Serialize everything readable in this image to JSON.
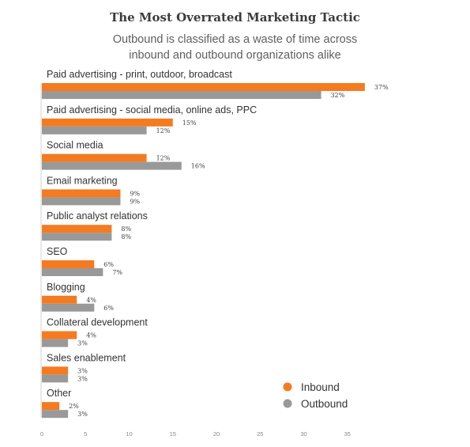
{
  "chart_data": {
    "type": "bar",
    "orientation": "horizontal",
    "title": "The Most Overrated Marketing Tactic",
    "subtitle": "Outbound is classified as a waste of time across inbound and outbound organizations alike",
    "categories": [
      "Paid advertising - print, outdoor, broadcast",
      "Paid advertising - social media, online ads, PPC",
      "Social media",
      "Email marketing",
      "Public analyst relations",
      "SEO",
      "Blogging",
      "Collateral development",
      "Sales enablement",
      "Other"
    ],
    "series": [
      {
        "name": "Inbound",
        "color": "#f47b20",
        "values": [
          37,
          15,
          12,
          9,
          8,
          6,
          4,
          4,
          3,
          2
        ]
      },
      {
        "name": "Outbound",
        "color": "#999999",
        "values": [
          32,
          12,
          16,
          9,
          8,
          7,
          6,
          3,
          3,
          3
        ]
      }
    ],
    "value_suffix": "%",
    "xlim": [
      0,
      37
    ],
    "xticks": [
      0,
      5,
      10,
      15,
      20,
      25,
      30,
      35
    ],
    "grid": false,
    "legend_position": "bottom-right"
  }
}
